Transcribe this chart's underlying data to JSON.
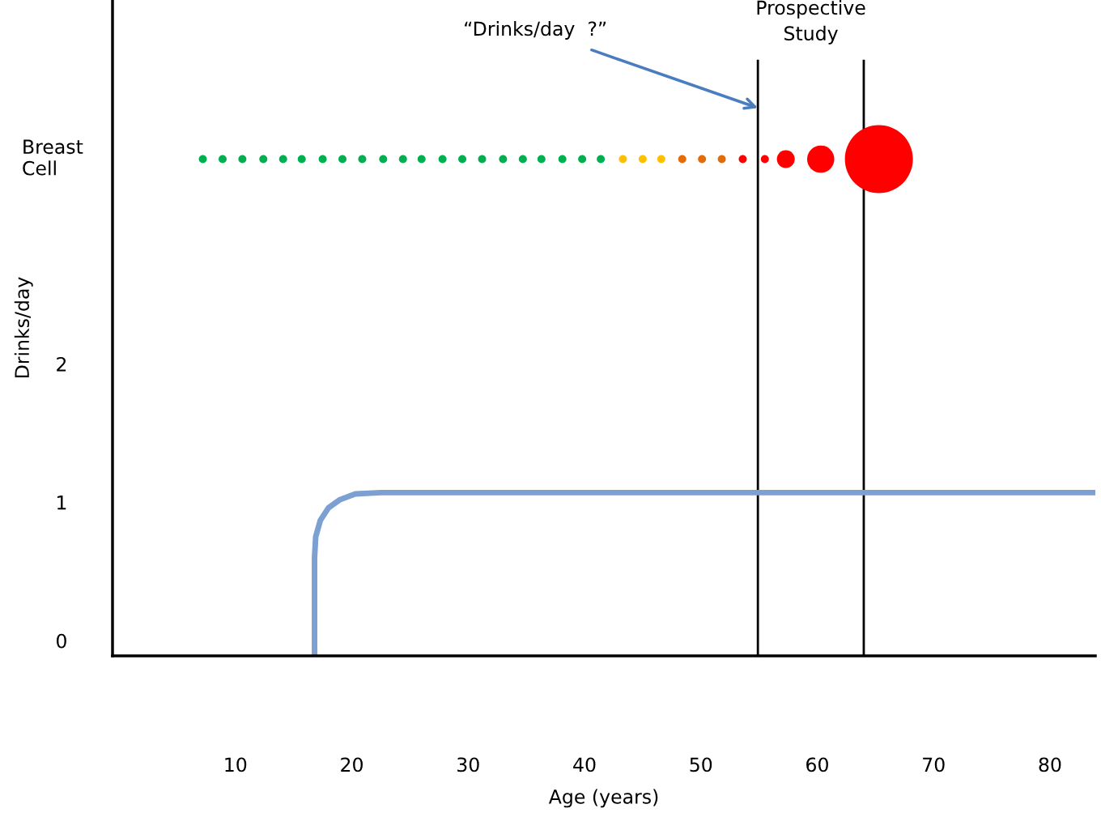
{
  "chart_data": {
    "type": "line",
    "xlabel": "Age (years)",
    "ylabel": "Drinks/day",
    "xlim": [
      -0.56,
      83.9
    ],
    "ylim": [
      -0.11,
      4.63
    ],
    "xticks": [
      10,
      20,
      30,
      40,
      50,
      60,
      70,
      80
    ],
    "yticks": [
      0,
      1,
      2
    ],
    "legend": false,
    "series": [
      {
        "color": "#7da0d2",
        "x": [
          16.8,
          16.8,
          16.9,
          17.3,
          18.0,
          19.0,
          20.3,
          22.5,
          83.9
        ],
        "values": [
          -0.11,
          0.6,
          0.75,
          0.87,
          0.96,
          1.02,
          1.06,
          1.07,
          1.07
        ]
      },
      {
        "type": "bubble",
        "name": "Breast\nCell",
        "x": [
          7.2,
          8.9,
          10.6,
          12.4,
          14.1,
          15.7,
          17.5,
          19.2,
          20.9,
          22.7,
          24.4,
          26.0,
          27.8,
          29.5,
          31.2,
          33.0,
          34.7,
          36.3,
          38.1,
          39.8,
          41.4,
          43.3,
          45.0,
          46.6,
          48.4,
          50.1,
          51.8,
          53.6,
          55.5,
          57.3,
          60.3,
          65.3
        ],
        "values": [
          3.48,
          3.48,
          3.48,
          3.48,
          3.48,
          3.48,
          3.48,
          3.48,
          3.48,
          3.48,
          3.48,
          3.48,
          3.48,
          3.48,
          3.48,
          3.48,
          3.48,
          3.48,
          3.48,
          3.48,
          3.48,
          3.48,
          3.48,
          3.48,
          3.48,
          3.48,
          3.48,
          3.48,
          3.48,
          3.48,
          3.48,
          3.48
        ],
        "sizes": [
          0.014,
          0.014,
          0.014,
          0.014,
          0.014,
          0.014,
          0.014,
          0.014,
          0.014,
          0.014,
          0.014,
          0.014,
          0.014,
          0.014,
          0.014,
          0.014,
          0.014,
          0.014,
          0.014,
          0.014,
          0.014,
          0.014,
          0.014,
          0.014,
          0.014,
          0.014,
          0.014,
          0.014,
          0.014,
          0.069,
          0.16,
          1
        ],
        "colors": [
          "#00b050",
          "#00b050",
          "#00b050",
          "#00b050",
          "#00b050",
          "#00b050",
          "#00b050",
          "#00b050",
          "#00b050",
          "#00b050",
          "#00b050",
          "#00b050",
          "#00b050",
          "#00b050",
          "#00b050",
          "#00b050",
          "#00b050",
          "#00b050",
          "#00b050",
          "#00b050",
          "#00b050",
          "#ffc000",
          "#ffc000",
          "#ffc000",
          "#e36c09",
          "#e36c09",
          "#e36c09",
          "#ff0000",
          "#ff0000",
          "#ff0000",
          "#ff0000",
          "#ff0000"
        ]
      }
    ],
    "ref_lines": [
      {
        "axis": "x",
        "value": 54.9,
        "color": "#000000"
      },
      {
        "axis": "x",
        "value": 64.0,
        "color": "#000000"
      }
    ],
    "annotations": [
      {
        "text": "“Drinks/day  ?”",
        "x": 54.9,
        "y": 3.85
      },
      "Prospective\nStudy"
    ]
  }
}
